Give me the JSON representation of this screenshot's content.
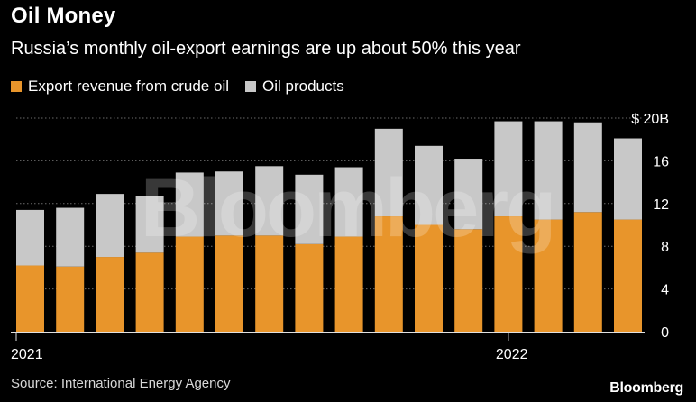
{
  "header": {
    "title": "Oil Money",
    "subtitle": "Russia’s monthly oil-export earnings are up about 50% this year"
  },
  "legend": [
    {
      "label": "Export revenue from crude oil",
      "color": "#e8952b"
    },
    {
      "label": "Oil products",
      "color": "#c8c8c8"
    }
  ],
  "footer": {
    "source": "Source: International Energy Agency",
    "brand": "Bloomberg"
  },
  "watermark": "Bloomberg",
  "chart_data": {
    "type": "bar",
    "stacked": true,
    "categories": [
      "2021-01",
      "2021-02",
      "2021-03",
      "2021-04",
      "2021-05",
      "2021-06",
      "2021-07",
      "2021-08",
      "2021-09",
      "2021-10",
      "2021-11",
      "2021-12",
      "2022-01",
      "2022-02",
      "2022-03",
      "2022-04"
    ],
    "x_tick_labels": [
      {
        "index": 0,
        "label": "2021"
      },
      {
        "index": 12,
        "label": "2022"
      }
    ],
    "series": [
      {
        "name": "Export revenue from crude oil",
        "color": "#e8952b",
        "values": [
          6.2,
          6.1,
          7.0,
          7.4,
          8.9,
          9.0,
          9.0,
          8.2,
          8.9,
          10.8,
          10.0,
          9.6,
          10.8,
          10.5,
          11.2,
          10.5
        ]
      },
      {
        "name": "Oil products",
        "color": "#c8c8c8",
        "values": [
          5.2,
          5.5,
          5.9,
          5.3,
          6.0,
          6.0,
          6.5,
          6.5,
          6.5,
          8.2,
          7.4,
          6.6,
          8.9,
          9.2,
          8.4,
          7.6
        ]
      }
    ],
    "yticks": [
      0,
      4,
      8,
      12,
      16,
      20
    ],
    "ytick_labels": [
      "0",
      "4",
      "8",
      "12",
      "16",
      "$ 20B"
    ],
    "ylim": [
      0,
      20
    ]
  }
}
